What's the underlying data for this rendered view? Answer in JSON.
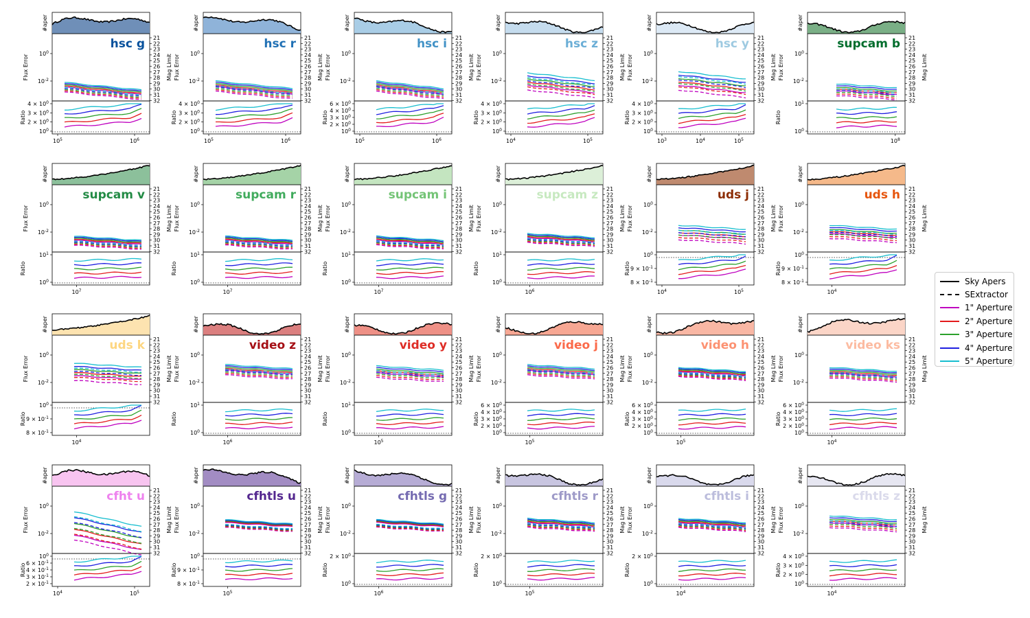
{
  "labels": {
    "hist_ylabel": "#aper",
    "flux_ylabel": "Flux Error",
    "mag_ylabel": "Mag Limit",
    "ratio_ylabel": "Ratio"
  },
  "legend": {
    "items": [
      {
        "label": "Sky Apers",
        "color": "#000000",
        "style": "solid"
      },
      {
        "label": "SExtractor",
        "color": "#000000",
        "style": "dashed"
      },
      {
        "label": "1\" Aperture",
        "color": "#bf00bf",
        "style": "solid"
      },
      {
        "label": "2\" Aperture",
        "color": "#e31a1c",
        "style": "solid"
      },
      {
        "label": "3\" Aperture",
        "color": "#2ca02c",
        "style": "solid"
      },
      {
        "label": "4\" Aperture",
        "color": "#1f1fe0",
        "style": "solid"
      },
      {
        "label": "5\" Aperture",
        "color": "#17becf",
        "style": "solid"
      }
    ]
  },
  "chart_data": {
    "type": "line",
    "mag_ticks": [
      "21",
      "22",
      "23",
      "24",
      "25",
      "26",
      "27",
      "28",
      "29",
      "30",
      "31",
      "32"
    ],
    "flux_yticks": [
      "10^0",
      "10^-2"
    ],
    "panels": [
      {
        "band": "hsc g",
        "color": "#08519c",
        "fill": "#6f8fb8",
        "x_ticks": [
          "10^5",
          "10^6"
        ],
        "ratio_ticks": [
          "4 × 10^0",
          "3 × 10^0",
          "2 × 10^0",
          "10^0"
        ],
        "flux_level": [
          -2.0,
          -2.35
        ],
        "ratio": [
          1.3,
          2.6
        ]
      },
      {
        "band": "hsc r",
        "color": "#2171b5",
        "fill": "#8fb3d9",
        "x_ticks": [
          "10^5",
          "10^6"
        ],
        "ratio_ticks": [
          "4 × 10^0",
          "3 × 10^0",
          "2 × 10^0",
          "10^0"
        ],
        "flux_level": [
          -1.9,
          -2.3
        ],
        "ratio": [
          1.4,
          2.6
        ]
      },
      {
        "band": "hsc i",
        "color": "#4292c6",
        "fill": "#a9cde6",
        "x_ticks": [
          "10^5",
          "10^6"
        ],
        "ratio_ticks": [
          "6 × 10^0",
          "4 × 10^0",
          "3 × 10^0",
          "2 × 10^0",
          "10^0"
        ],
        "flux_level": [
          -1.9,
          -2.3
        ],
        "ratio": [
          1.5,
          2.7
        ]
      },
      {
        "band": "hsc z",
        "color": "#6baed6",
        "fill": "#c5dcee",
        "x_ticks": [
          "10^4",
          "10^5"
        ],
        "ratio_ticks": [
          "4 × 10^0",
          "3 × 10^0",
          "2 × 10^0",
          "10^0"
        ],
        "flux_level": [
          -1.3,
          -2.2
        ],
        "ratio": [
          1.4,
          2.6
        ]
      },
      {
        "band": "hsc y",
        "color": "#9ecae1",
        "fill": "#dce9f5",
        "x_ticks": [
          "10^3",
          "10^4",
          "10^5"
        ],
        "ratio_ticks": [
          "4 × 10^0",
          "3 × 10^0",
          "2 × 10^0",
          "10^0"
        ],
        "flux_level": [
          -1.2,
          -2.2
        ],
        "ratio": [
          1.3,
          2.6
        ]
      },
      {
        "band": "supcam b",
        "color": "#006d2c",
        "fill": "#7aaf86",
        "x_ticks": [
          "10^8"
        ],
        "ratio_ticks": [
          "10^1",
          "10^0"
        ],
        "flux_level": [
          -2.1,
          -2.6
        ],
        "ratio": [
          1.4,
          1.6
        ]
      },
      {
        "band": "supcam v",
        "color": "#238b45",
        "fill": "#8cc09b",
        "x_ticks": [
          "10^7"
        ],
        "ratio_ticks": [
          "10^1",
          "10^0"
        ],
        "flux_level": [
          -2.2,
          -2.5
        ],
        "ratio": [
          1.4,
          1.6
        ]
      },
      {
        "band": "supcam r",
        "color": "#41ab5d",
        "fill": "#a5d3a7",
        "x_ticks": [
          "10^7"
        ],
        "ratio_ticks": [
          "10^1",
          "10^0"
        ],
        "flux_level": [
          -2.2,
          -2.5
        ],
        "ratio": [
          1.4,
          1.6
        ]
      },
      {
        "band": "supcam i",
        "color": "#74c476",
        "fill": "#c4e5c0",
        "x_ticks": [
          "10^7"
        ],
        "ratio_ticks": [
          "10^1",
          "10^0"
        ],
        "flux_level": [
          -2.2,
          -2.5
        ],
        "ratio": [
          1.4,
          1.6
        ]
      },
      {
        "band": "supcam z",
        "color": "#c7e9c0",
        "fill": "#dcefd8",
        "x_ticks": [
          "10^6"
        ],
        "ratio_ticks": [
          "10^1",
          "10^0"
        ],
        "flux_level": [
          -2.0,
          -2.3
        ],
        "ratio": [
          1.5,
          1.6
        ]
      },
      {
        "band": "uds j",
        "color": "#8c2d04",
        "fill": "#bf8a6f",
        "x_ticks": [
          "10^4",
          "10^5"
        ],
        "ratio_ticks": [
          "10^0",
          "9 × 10^-1",
          "8 × 10^-1"
        ],
        "flux_level": [
          -1.4,
          -2.1
        ],
        "ratio": [
          1.0,
          1.3
        ]
      },
      {
        "band": "uds h",
        "color": "#e6550d",
        "fill": "#f5b98a",
        "x_ticks": [
          "10^4"
        ],
        "ratio_ticks": [
          "10^0",
          "9 × 10^-1",
          "8 × 10^-1"
        ],
        "flux_level": [
          -1.4,
          -2.0
        ],
        "ratio": [
          1.0,
          1.3
        ]
      },
      {
        "band": "uds k",
        "color": "#fdd681",
        "fill": "#fde3b0",
        "x_ticks": [
          "10^4"
        ],
        "ratio_ticks": [
          "10^0",
          "9 × 10^-1",
          "8 × 10^-1"
        ],
        "flux_level": [
          -0.5,
          -1.4
        ],
        "ratio": [
          1.0,
          1.4
        ]
      },
      {
        "band": "video z",
        "color": "#a50f15",
        "fill": "#db7f7f",
        "x_ticks": [
          "10^6"
        ],
        "ratio_ticks": [
          "10^1",
          "10^0"
        ],
        "flux_level": [
          -0.6,
          -1.0
        ],
        "ratio": [
          1.4,
          1.6
        ]
      },
      {
        "band": "video y",
        "color": "#de2d26",
        "fill": "#ee9086",
        "x_ticks": [
          "10^5"
        ],
        "ratio_ticks": [
          "10^1",
          "10^0"
        ],
        "flux_level": [
          -0.7,
          -1.2
        ],
        "ratio": [
          1.5,
          1.6
        ]
      },
      {
        "band": "video j",
        "color": "#fb6a4a",
        "fill": "#f7a793",
        "x_ticks": [
          "10^5"
        ],
        "ratio_ticks": [
          "6 × 10^0",
          "4 × 10^0",
          "3 × 10^0",
          "2 × 10^0",
          "10^0"
        ],
        "flux_level": [
          -0.6,
          -1.0
        ],
        "ratio": [
          1.5,
          1.7
        ]
      },
      {
        "band": "video h",
        "color": "#fc9272",
        "fill": "#f9b7a4",
        "x_ticks": [
          "10^5"
        ],
        "ratio_ticks": [
          "6 × 10^0",
          "4 × 10^0",
          "3 × 10^0",
          "2 × 10^0",
          "10^0"
        ],
        "flux_level": [
          -0.8,
          -1.1
        ],
        "ratio": [
          1.5,
          1.7
        ]
      },
      {
        "band": "video ks",
        "color": "#fcbba1",
        "fill": "#fbd5c7",
        "x_ticks": [
          "10^4"
        ],
        "ratio_ticks": [
          "6 × 10^0",
          "4 × 10^0",
          "3 × 10^0",
          "2 × 10^0",
          "10^0"
        ],
        "flux_level": [
          -0.8,
          -1.2
        ],
        "ratio": [
          1.5,
          1.7
        ]
      },
      {
        "band": "cfht u",
        "color": "#ee82ee",
        "fill": "#f8c4f0",
        "x_ticks": [
          "10^4",
          "10^5"
        ],
        "ratio_ticks": [
          "10^0",
          "6 × 10^-1",
          "4 × 10^-1",
          "3 × 10^-1",
          "2 × 10^-1"
        ],
        "flux_level": [
          -0.3,
          -2.0
        ],
        "ratio": [
          0.3,
          1.0
        ]
      },
      {
        "band": "cfhtls u",
        "color": "#54278f",
        "fill": "#a28cc3",
        "x_ticks": [
          "10^5"
        ],
        "ratio_ticks": [
          "10^0",
          "9 × 10^-1",
          "8 × 10^-1"
        ],
        "flux_level": [
          -0.9,
          -1.1
        ],
        "ratio": [
          1.0,
          1.1
        ]
      },
      {
        "band": "cfhtls g",
        "color": "#756bb1",
        "fill": "#b6acd5",
        "x_ticks": [
          "10^6"
        ],
        "ratio_ticks": [
          "2 × 10^0",
          "10^0"
        ],
        "flux_level": [
          -0.9,
          -1.1
        ],
        "ratio": [
          1.2,
          1.4
        ]
      },
      {
        "band": "cfhtls r",
        "color": "#9e9ac8",
        "fill": "#c8c5e0",
        "x_ticks": [
          "10^5"
        ],
        "ratio_ticks": [
          "2 × 10^0",
          "10^0"
        ],
        "flux_level": [
          -0.8,
          -1.1
        ],
        "ratio": [
          1.2,
          1.4
        ]
      },
      {
        "band": "cfhtls i",
        "color": "#bcbddc",
        "fill": "#d9d9ec",
        "x_ticks": [
          "10^4"
        ],
        "ratio_ticks": [
          "2 × 10^0",
          "10^0"
        ],
        "flux_level": [
          -0.8,
          -1.1
        ],
        "ratio": [
          1.2,
          1.4
        ]
      },
      {
        "band": "cfhtls z",
        "color": "#dadaeb",
        "fill": "#e6e6f1",
        "x_ticks": [
          "10^4"
        ],
        "ratio_ticks": [
          "4 × 10^0",
          "3 × 10^0",
          "2 × 10^0",
          "10^0"
        ],
        "flux_level": [
          -0.6,
          -1.1
        ],
        "ratio": [
          1.2,
          1.6
        ]
      }
    ]
  }
}
